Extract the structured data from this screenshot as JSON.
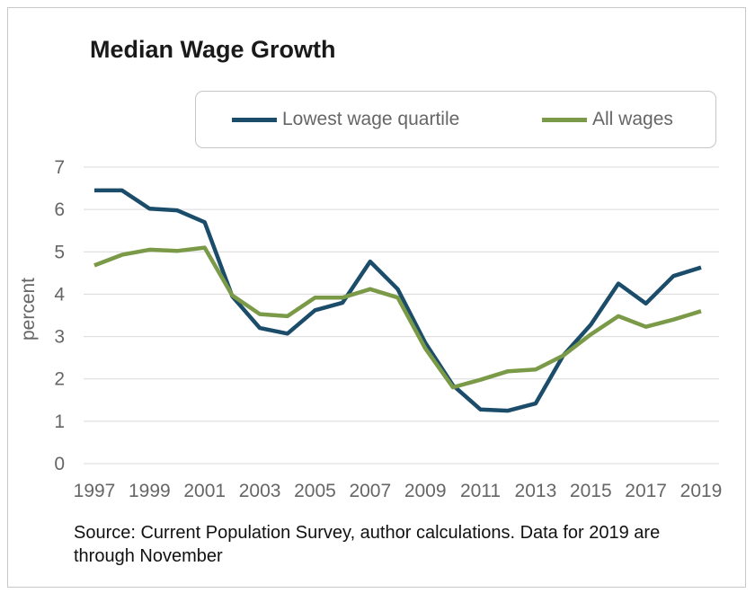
{
  "chart_data": {
    "type": "line",
    "title": "Median Wage Growth",
    "ylabel": "percent",
    "xlabel": "",
    "x": [
      1997,
      1998,
      1999,
      2000,
      2001,
      2002,
      2003,
      2004,
      2005,
      2006,
      2007,
      2008,
      2009,
      2010,
      2011,
      2012,
      2013,
      2014,
      2015,
      2016,
      2017,
      2018,
      2019
    ],
    "x_tick_labels": [
      "1997",
      "1999",
      "2001",
      "2003",
      "2005",
      "2007",
      "2009",
      "2011",
      "2013",
      "2015",
      "2017",
      "2019"
    ],
    "y_tick_labels": [
      "0",
      "1",
      "2",
      "3",
      "4",
      "5",
      "6",
      "7"
    ],
    "ylim": [
      0,
      7
    ],
    "xlim": [
      1997,
      2019
    ],
    "grid": "horizontal",
    "legend_position": "top",
    "series": [
      {
        "name": "Lowest wage quartile",
        "color": "#1b4d6b",
        "values": [
          6.45,
          6.45,
          6.02,
          5.98,
          5.7,
          3.95,
          3.2,
          3.07,
          3.62,
          3.8,
          4.77,
          4.12,
          2.85,
          1.85,
          1.28,
          1.25,
          1.42,
          2.55,
          3.28,
          4.25,
          3.78,
          4.43,
          4.63
        ]
      },
      {
        "name": "All wages",
        "color": "#7a9a48",
        "values": [
          4.68,
          4.93,
          5.05,
          5.02,
          5.1,
          3.97,
          3.53,
          3.48,
          3.92,
          3.92,
          4.12,
          3.92,
          2.72,
          1.8,
          1.98,
          2.18,
          2.22,
          2.55,
          3.05,
          3.48,
          3.23,
          3.4,
          3.6
        ]
      }
    ],
    "source_note": "Source: Current Population Survey, author calculations. Data for 2019 are through November"
  },
  "colors": {
    "grid": "#d9d9d9",
    "tick_text": "#666666"
  }
}
